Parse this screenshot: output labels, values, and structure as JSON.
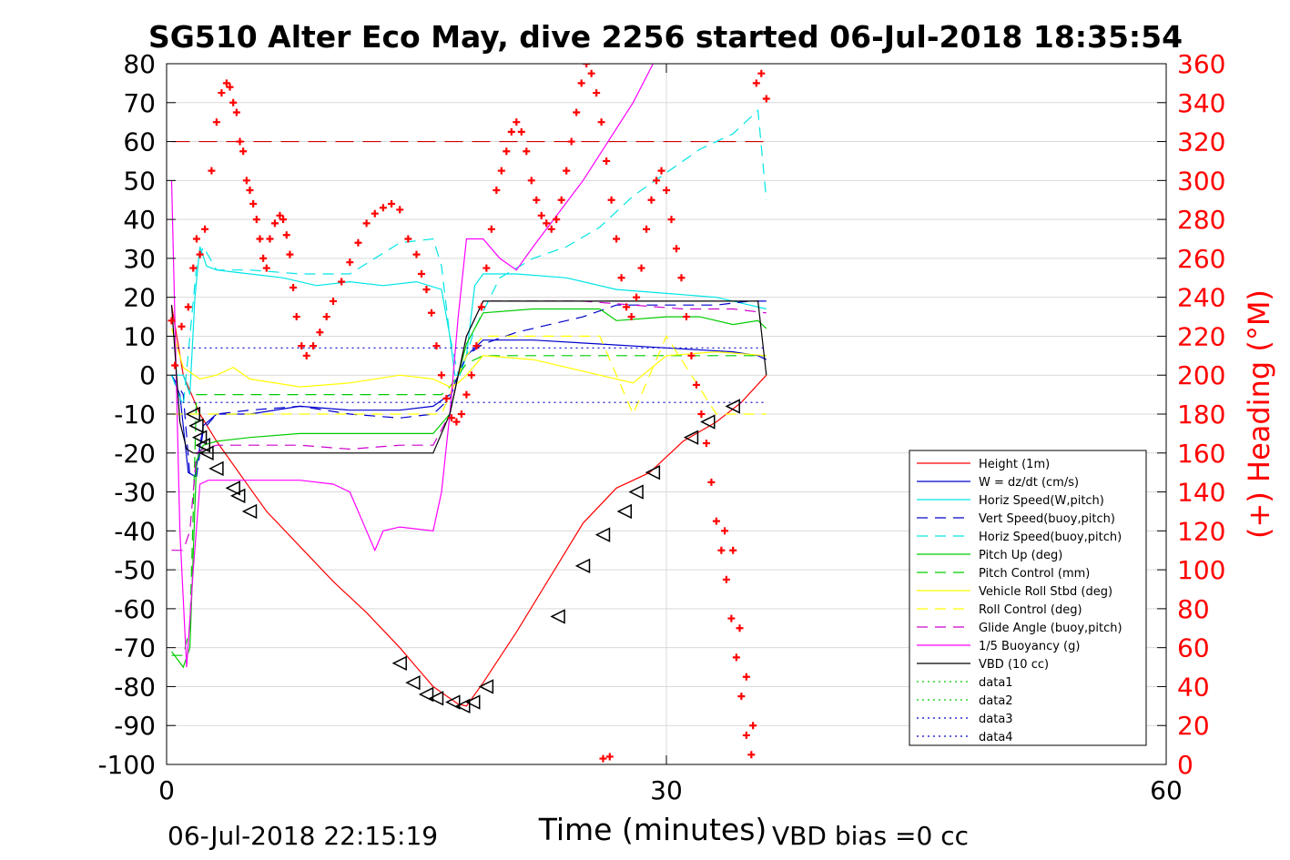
{
  "chart_data": {
    "type": "line",
    "title": "SG510 Alter Eco May, dive 2256 started 06-Jul-2018 18:35:54",
    "xlabel": "Time (minutes)",
    "ylabel_right": "(+) Heading (°M)",
    "footer_left": "06-Jul-2018 22:15:19",
    "footer_right": "VBD bias =0 cc",
    "xlim": [
      0,
      60
    ],
    "ylim": [
      -100,
      80
    ],
    "y2lim": [
      0,
      360
    ],
    "x_ticks": [
      0,
      30,
      60
    ],
    "y_ticks": [
      -100,
      -90,
      -80,
      -70,
      -60,
      -50,
      -40,
      -30,
      -20,
      -10,
      0,
      10,
      20,
      30,
      40,
      50,
      60,
      70,
      80
    ],
    "y2_ticks": [
      0,
      20,
      40,
      60,
      80,
      100,
      120,
      140,
      160,
      180,
      200,
      220,
      240,
      260,
      280,
      300,
      320,
      340,
      360
    ],
    "grid": true,
    "legend_position": "bottom-right",
    "colors": {
      "axis": "#000000",
      "right_axis": "#ff0000",
      "grid": "#d9d9d9"
    },
    "series": [
      {
        "name": "Height (1m)",
        "style": "solid",
        "color": "#ff0000",
        "x": [
          0.3,
          1,
          2,
          3,
          4,
          5,
          6,
          8,
          10,
          12,
          14,
          15,
          16,
          17,
          17.5,
          18,
          19,
          21,
          23,
          25,
          27,
          29,
          31,
          33,
          34.5,
          36
        ],
        "y": [
          18,
          0,
          -10,
          -17,
          -23,
          -29,
          -35,
          -44,
          -53,
          -61,
          -70,
          -75,
          -80,
          -83,
          -84.5,
          -85,
          -79,
          -66,
          -52,
          -38,
          -29,
          -25,
          -17,
          -12,
          -7,
          0
        ]
      },
      {
        "name": "W = dz/dt (cm/s)",
        "style": "solid",
        "color": "#0000cc",
        "x": [
          0.3,
          0.8,
          1.3,
          1.7,
          2.2,
          3,
          5,
          8,
          11,
          14,
          16,
          17,
          17.5,
          18,
          19,
          22,
          26,
          30,
          34,
          35.5,
          36
        ],
        "y": [
          0,
          -5,
          -25,
          -26,
          -13,
          -10,
          -10,
          -8,
          -9,
          -9,
          -8,
          -5,
          0,
          5,
          9,
          9,
          8,
          7,
          6,
          5,
          4
        ]
      },
      {
        "name": "Horiz Speed(W,pitch)",
        "style": "solid",
        "color": "#00e5e5",
        "x": [
          0.3,
          1,
          1.4,
          1.7,
          2,
          2.4,
          3,
          5,
          7,
          9,
          11,
          13,
          15,
          16.5,
          17,
          17.3,
          17.6,
          18,
          18.5,
          19,
          21,
          24,
          27,
          30,
          33,
          35,
          36
        ],
        "y": [
          0,
          0,
          -5,
          20,
          33,
          28,
          27,
          26,
          25,
          23,
          24,
          23,
          24,
          22,
          10,
          0,
          0,
          5,
          23,
          26,
          26,
          25,
          22,
          21,
          20,
          18,
          17
        ]
      },
      {
        "name": "Vert Speed(buoy,pitch)",
        "style": "dashed",
        "color": "#0000cc",
        "x": [
          0.3,
          1,
          1.4,
          1.8,
          2.2,
          3,
          5,
          8,
          11,
          14,
          16,
          17,
          17.5,
          18,
          19,
          21,
          23,
          25,
          27,
          29,
          31,
          33,
          35,
          36
        ],
        "y": [
          0,
          -5,
          -26,
          -26,
          -14,
          -10,
          -9,
          -8,
          -10,
          -11,
          -10,
          -6,
          0,
          5,
          8,
          11,
          13,
          15,
          18,
          18,
          18,
          18,
          19,
          19
        ]
      },
      {
        "name": "Horiz Speed(buoy,pitch)",
        "style": "dashed",
        "color": "#00e5e5",
        "x": [
          0.3,
          1,
          1.4,
          1.8,
          2.2,
          3,
          5,
          8,
          11,
          14,
          16,
          16.5,
          17,
          17.5,
          18,
          18.5,
          20,
          22,
          24,
          26,
          28,
          30,
          32,
          34,
          35.5,
          36
        ],
        "y": [
          0,
          -8,
          10,
          28,
          33,
          27,
          27,
          26,
          26,
          34,
          35,
          28,
          10,
          0,
          5,
          12,
          25,
          30,
          33,
          38,
          46,
          52,
          58,
          62,
          68,
          45
        ]
      },
      {
        "name": "Pitch Up (deg)",
        "style": "solid",
        "color": "#00cc00",
        "x": [
          0.3,
          1,
          1.4,
          1.8,
          2.2,
          3,
          5,
          8,
          11,
          14,
          16,
          17,
          17.5,
          18,
          19,
          22,
          26,
          27,
          30,
          32,
          34,
          35.5,
          36
        ],
        "y": [
          -71,
          -75,
          -70,
          -22,
          -18,
          -17,
          -16,
          -15,
          -15,
          -15,
          -15,
          -10,
          0,
          8,
          16,
          17,
          17,
          14,
          15,
          15,
          13,
          14,
          12
        ]
      },
      {
        "name": "Pitch Control (mm)",
        "style": "dashed",
        "color": "#00cc00",
        "x": [
          0.3,
          1,
          1.4,
          1.8,
          2.2,
          3,
          8,
          14,
          16.5,
          17,
          17.5,
          18,
          19,
          25,
          30,
          36
        ],
        "y": [
          -72,
          -72,
          -65,
          -5,
          -5,
          -5,
          -5,
          -5,
          -5,
          -3,
          0,
          3,
          5,
          5,
          5,
          5
        ]
      },
      {
        "name": "Vehicle Roll Stbd (deg)",
        "style": "solid",
        "color": "#ffff00",
        "x": [
          0.3,
          1,
          2,
          3,
          4,
          5,
          8,
          11,
          14,
          16,
          17,
          17.5,
          18,
          19,
          22,
          25,
          28,
          30,
          33,
          36
        ],
        "y": [
          12,
          2,
          -1,
          0,
          2,
          -1,
          -3,
          -2,
          0,
          -1,
          -3,
          -2,
          0,
          5,
          4,
          1,
          -2,
          5,
          6,
          5
        ]
      },
      {
        "name": "Roll Control (deg)",
        "style": "dashed",
        "color": "#ffff00",
        "x": [
          0.3,
          1,
          2,
          3,
          8,
          14,
          16.5,
          17,
          17.5,
          18,
          19,
          26,
          28,
          30,
          33,
          36
        ],
        "y": [
          -10,
          -10,
          -10,
          -10,
          -10,
          -10,
          -10,
          -5,
          0,
          5,
          10,
          10,
          -10,
          10,
          -10,
          -10
        ]
      },
      {
        "name": "Glide Angle (buoy,pitch)",
        "style": "dashed",
        "color": "#cc00cc",
        "x": [
          0.3,
          1,
          1.4,
          1.8,
          2.2,
          3,
          5,
          8,
          11,
          14,
          16,
          17,
          17.5,
          18,
          19,
          22,
          25,
          28,
          31,
          34,
          36
        ],
        "y": [
          -45,
          -45,
          -40,
          -20,
          -19,
          -18,
          -18,
          -18,
          -19,
          -18,
          -18,
          -10,
          0,
          10,
          19,
          19,
          19,
          18,
          17,
          17,
          16
        ]
      },
      {
        "name": "1/5 Buoyancy (g)",
        "style": "solid",
        "color": "#ff00ff",
        "x": [
          0.3,
          0.8,
          1.2,
          1.6,
          2,
          2.5,
          5,
          8,
          10,
          11,
          12,
          12.5,
          13,
          14,
          16,
          16.5,
          17,
          17.5,
          18,
          19,
          20,
          21,
          22,
          25,
          28,
          29.2
        ],
        "y": [
          50,
          -40,
          -75,
          -50,
          -28,
          -27,
          -27,
          -27,
          -28,
          -30,
          -40,
          -45,
          -40,
          -39,
          -40,
          -30,
          -10,
          15,
          35,
          35,
          30,
          27,
          33,
          50,
          70,
          80
        ]
      },
      {
        "name": "VBD (10 cc)",
        "style": "solid",
        "color": "#000000",
        "x": [
          0.3,
          0.8,
          1.2,
          1.6,
          2,
          5,
          10,
          15,
          16,
          17,
          17.5,
          18,
          19,
          25,
          30,
          35.5,
          36
        ],
        "y": [
          18,
          -12,
          -19,
          -20,
          -20,
          -20,
          -20,
          -20,
          -20,
          -10,
          0,
          10,
          19,
          19,
          19,
          19,
          0
        ]
      },
      {
        "name": "data1",
        "style": "dotted",
        "color": "#00cc00",
        "x": [],
        "y": []
      },
      {
        "name": "data2",
        "style": "dotted",
        "color": "#00cc00",
        "x": [],
        "y": []
      },
      {
        "name": "data3",
        "style": "dotted",
        "color": "#0000cc",
        "x": [
          0.3,
          36
        ],
        "y": [
          7,
          7
        ]
      },
      {
        "name": "data4",
        "style": "dotted",
        "color": "#0000cc",
        "x": [
          0.3,
          36
        ],
        "y": [
          -7,
          -7
        ]
      }
    ],
    "reference_line": {
      "y2": 320,
      "style": "dashed",
      "color": "#cc0000",
      "x": [
        0.3,
        36
      ]
    },
    "heading_points": {
      "color": "#ff0000",
      "axis": "right",
      "x": [
        0.3,
        0.5,
        0.9,
        1.3,
        1.6,
        1.8,
        2.0,
        2.3,
        2.7,
        3.0,
        3.3,
        3.6,
        3.8,
        4.0,
        4.2,
        4.4,
        4.6,
        4.8,
        5.0,
        5.2,
        5.4,
        5.6,
        5.8,
        6.0,
        6.2,
        6.5,
        6.8,
        7.0,
        7.2,
        7.4,
        7.6,
        7.8,
        8.1,
        8.4,
        8.8,
        9.2,
        9.6,
        10,
        10.5,
        11,
        11.5,
        12,
        12.5,
        13,
        13.5,
        14,
        14.5,
        15,
        15.3,
        15.6,
        15.9,
        16.2,
        16.5,
        16.8,
        17.1,
        17.4,
        17.7,
        18.0,
        18.3,
        18.6,
        18.9,
        19.2,
        19.5,
        19.8,
        20.1,
        20.4,
        20.7,
        21.0,
        21.3,
        21.6,
        21.9,
        22.2,
        22.5,
        22.8,
        23.1,
        23.4,
        23.7,
        24.0,
        24.3,
        24.6,
        24.9,
        25.2,
        25.5,
        25.8,
        26.1,
        26.4,
        26.7,
        27.0,
        27.3,
        27.6,
        27.9,
        28.2,
        28.5,
        28.8,
        29.1,
        29.4,
        29.7,
        30.0,
        30.3,
        30.6,
        30.9,
        31.2,
        31.5,
        31.8,
        32.1,
        32.4,
        32.7,
        33.0,
        33.3,
        33.6,
        33.9,
        34.2,
        34.5,
        34.8,
        35.1,
        35.4,
        35.7,
        36.0,
        26.2,
        26.6,
        33.5,
        34.0,
        34.4,
        34.8,
        35.2
      ],
      "y": [
        228,
        205,
        225,
        235,
        255,
        270,
        262,
        275,
        305,
        330,
        345,
        350,
        348,
        340,
        335,
        320,
        315,
        300,
        295,
        288,
        280,
        270,
        260,
        255,
        270,
        278,
        282,
        280,
        272,
        262,
        245,
        230,
        215,
        210,
        215,
        222,
        230,
        238,
        248,
        258,
        268,
        278,
        283,
        286,
        288,
        285,
        270,
        262,
        252,
        244,
        232,
        215,
        200,
        188,
        178,
        176,
        180,
        190,
        200,
        215,
        235,
        255,
        275,
        295,
        305,
        315,
        325,
        330,
        325,
        315,
        300,
        290,
        282,
        278,
        275,
        280,
        290,
        305,
        320,
        335,
        350,
        360,
        355,
        345,
        330,
        310,
        290,
        270,
        250,
        235,
        230,
        240,
        255,
        275,
        290,
        300,
        305,
        295,
        280,
        265,
        250,
        230,
        210,
        195,
        180,
        165,
        145,
        125,
        110,
        95,
        75,
        55,
        35,
        15,
        5,
        350,
        355,
        342,
        3,
        4,
        120,
        110,
        70,
        45,
        20
      ]
    },
    "markers": {
      "type": "triangle-left",
      "color": "#000000",
      "on_series": "Height (1m)",
      "x": [
        1.6,
        1.8,
        2.0,
        2.2,
        2.4,
        3.0,
        4.0,
        4.3,
        5.0,
        14.0,
        14.8,
        15.6,
        16.2,
        17.2,
        17.8,
        18.4,
        19.2,
        23.5,
        25.0,
        26.2,
        27.5,
        28.2,
        29.2,
        31.5,
        32.5,
        34.0
      ],
      "y": [
        -10,
        -13,
        -16,
        -18,
        -20,
        -24,
        -29,
        -31,
        -35,
        -74,
        -79,
        -82,
        -83,
        -84,
        -85,
        -84,
        -80,
        -62,
        -49,
        -41,
        -35,
        -30,
        -25,
        -16,
        -12,
        -8
      ]
    }
  }
}
